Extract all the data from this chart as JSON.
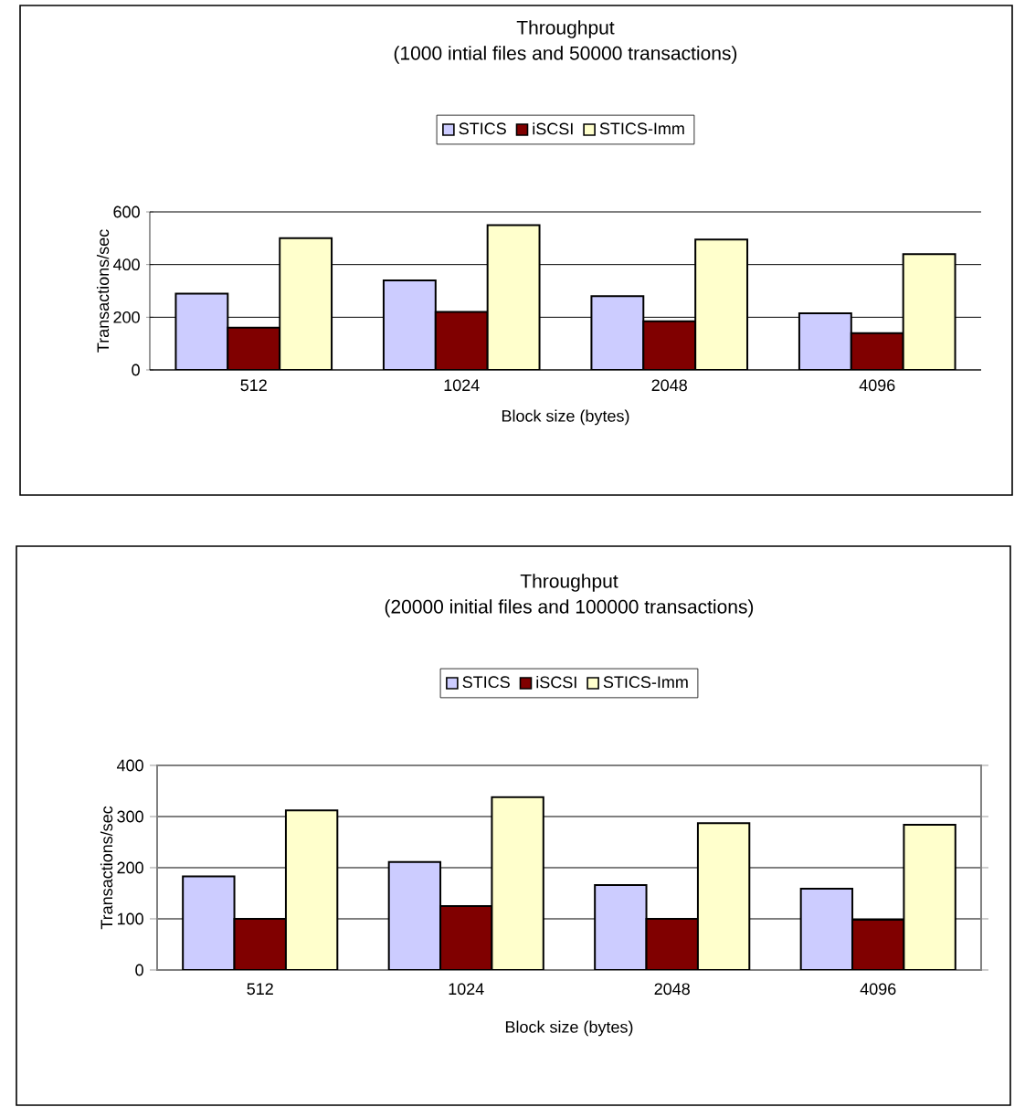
{
  "chart_data": [
    {
      "type": "bar",
      "title": "Throughput",
      "subtitle": "(1000 intial files and 50000 transactions)",
      "xlabel": "Block size (bytes)",
      "ylabel": "Transactions/sec",
      "categories": [
        "512",
        "1024",
        "2048",
        "4096"
      ],
      "series": [
        {
          "name": "STICS",
          "color": "#ccccff",
          "values": [
            290,
            340,
            280,
            215
          ]
        },
        {
          "name": "iSCSI",
          "color": "#800000",
          "values": [
            160,
            220,
            185,
            140
          ]
        },
        {
          "name": "STICS-Imm",
          "color": "#ffffcc",
          "values": [
            500,
            550,
            495,
            440
          ]
        }
      ],
      "ylim": [
        0,
        600
      ],
      "yticks": [
        0,
        200,
        400,
        600
      ],
      "grid": "y",
      "legend": "top"
    },
    {
      "type": "bar",
      "title": "Throughput",
      "subtitle": "(20000 initial files and 100000 transactions)",
      "xlabel": "Block size (bytes)",
      "ylabel": "Transactions/sec",
      "categories": [
        "512",
        "1024",
        "2048",
        "4096"
      ],
      "series": [
        {
          "name": "STICS",
          "color": "#ccccff",
          "values": [
            183,
            211,
            166,
            159
          ]
        },
        {
          "name": "iSCSI",
          "color": "#800000",
          "values": [
            100,
            125,
            100,
            98
          ]
        },
        {
          "name": "STICS-Imm",
          "color": "#ffffcc",
          "values": [
            312,
            338,
            287,
            284
          ]
        }
      ],
      "ylim": [
        0,
        400
      ],
      "yticks": [
        0,
        100,
        200,
        300,
        400
      ],
      "grid": "y",
      "legend": "top"
    }
  ]
}
